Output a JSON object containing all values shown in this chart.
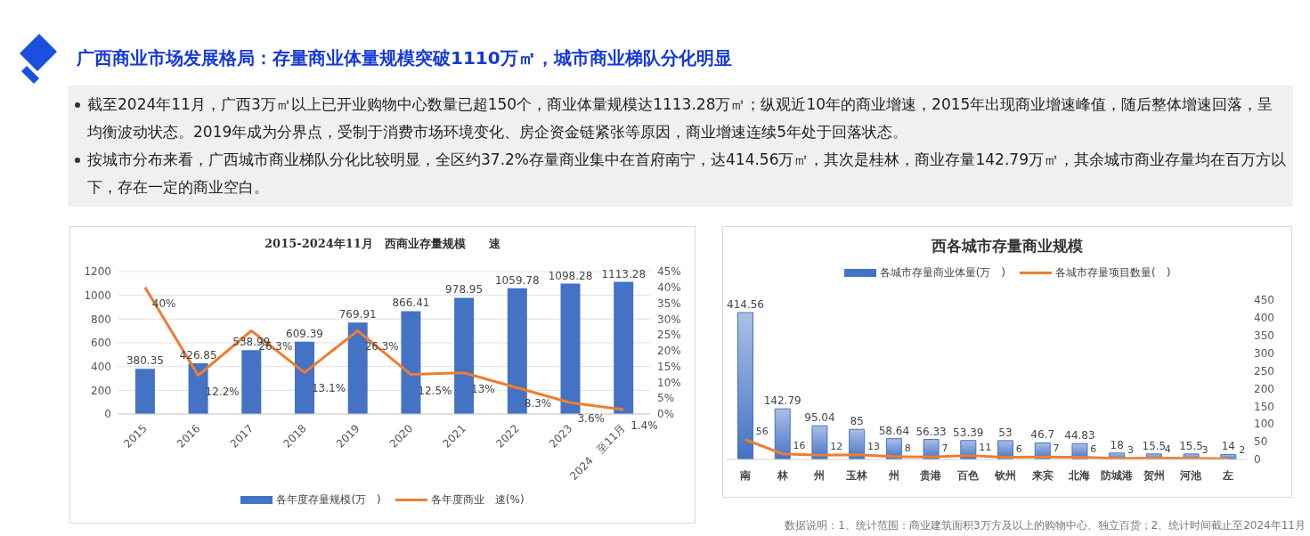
{
  "chart_data": [
    {
      "type": "other",
      "title": "广西商业市场发展格局：存量商业体量规模突破1110万㎡，城市商业梯队分化明显",
      "annotations": [
        "截至2024年11月，广西3万㎡以上已开业购物中心数量已超150个，商业体量规模达1113.28万㎡；纵观近10年的商业增速，2015年出现商业增速峰值，随后整体增速回落，呈均衡波动状态。2019年成为分界点，受制于消费市场环境变化、房企资金链紧张等原因，商业增速连续5年处于回落状态。",
        "按城市分布来看，广西城市商业梯队分化比较明显，全区约37.2%存量商业集中在首府南宁，达414.56万㎡，其次是桂林，商业存量142.79万㎡，其余城市商业存量均在百万方以下，存在一定的商业空白。"
      ]
    },
    {
      "type": "bar",
      "title": "2015-2024年11月　西商业存量规模　　速",
      "categories": [
        "2015",
        "2016",
        "2017",
        "2018",
        "2019",
        "2020",
        "2021",
        "2022",
        "2023",
        "2024　至11月"
      ],
      "series": [
        {
          "name": "各年度存量规模(万　)",
          "color": "#4472c4",
          "values": [
            380.35,
            426.85,
            538.99,
            609.39,
            769.91,
            866.41,
            978.95,
            1059.78,
            1098.28,
            1113.28
          ],
          "value_labels": [
            "380.35",
            "426.85",
            "538.99",
            "609.39",
            "769.91",
            "866.41",
            "978.95",
            "1059.78",
            "1098.28",
            "1113.28"
          ]
        },
        {
          "name": "各年度商业　速(%)",
          "type": "line",
          "axis": "y2",
          "color": "#ed7d31",
          "values": [
            40,
            12.2,
            26.3,
            13.1,
            26.3,
            12.5,
            13,
            8.3,
            3.6,
            1.4
          ],
          "value_labels": [
            "40%",
            "12.2%",
            "26.3%",
            "13.1%",
            "26.3%",
            "12.5%",
            "13%",
            "8.3%",
            "3.6%",
            "1.4%"
          ]
        }
      ],
      "ylim": [
        0,
        1200
      ],
      "yticks": [
        0,
        200,
        400,
        600,
        800,
        1000,
        1200
      ],
      "y2lim": [
        0,
        45
      ],
      "y2ticks": [
        {
          "value": 0,
          "label": "0%"
        },
        {
          "value": 5,
          "label": "5%"
        },
        {
          "value": 10,
          "label": "10%"
        },
        {
          "value": 15,
          "label": "15%"
        },
        {
          "value": 20,
          "label": "20%"
        },
        {
          "value": 25,
          "label": "25%"
        },
        {
          "value": 30,
          "label": "30%"
        },
        {
          "value": 35,
          "label": "35%"
        },
        {
          "value": 40,
          "label": "40%"
        },
        {
          "value": 45,
          "label": "45%"
        }
      ],
      "grid": "y",
      "legend": "bottom",
      "marker": "none"
    },
    {
      "type": "bar",
      "title": "西各城市存量商业规模",
      "categories": [
        "南",
        "林",
        "州",
        "玉林",
        "州",
        "贵港",
        "百色",
        "钦州",
        "来宾",
        "北海",
        "防城港",
        "贺州",
        "河池",
        "左"
      ],
      "series": [
        {
          "name": "各城市存量商业体量(万　)",
          "color": "#4472c4",
          "axis": "y2",
          "values": [
            414.56,
            142.79,
            95.04,
            85,
            58.64,
            56.33,
            53.39,
            53,
            46.7,
            44.83,
            18,
            15.5,
            15.5,
            14
          ]
        },
        {
          "name": "各城市存量项目数量(　)",
          "type": "line",
          "axis": "y2",
          "color": "#ed7d31",
          "values": [
            56,
            16,
            12,
            13,
            8,
            7,
            11,
            6,
            7,
            6,
            3,
            4,
            3,
            2
          ]
        }
      ],
      "y2lim": [
        0,
        450
      ],
      "y2ticks": [
        0,
        50,
        100,
        150,
        200,
        250,
        300,
        350,
        400,
        450
      ],
      "data_labels": true,
      "legend": "top",
      "marker": "none",
      "annotations": [
        "数据说明：1、统计范围：商业建筑面积3万方及以上的购物中心、独立百货；2、统计时间截止至2024年11月"
      ]
    }
  ]
}
